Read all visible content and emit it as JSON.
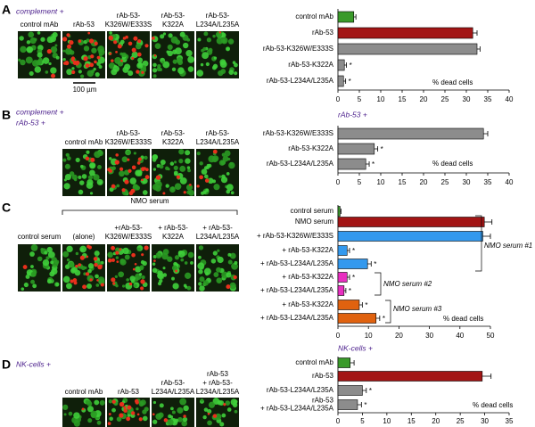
{
  "panels": [
    {
      "letter": "A",
      "heading": [
        "complement +"
      ],
      "images": [
        [
          "control mAb"
        ],
        [
          "rAb-53"
        ],
        [
          "rAb-53-",
          "K326W/E333S"
        ],
        [
          "rAb-53-",
          "K322A"
        ],
        [
          "rAb-53-",
          "L234A/L235A"
        ]
      ],
      "scale_bar": "100 µm"
    },
    {
      "letter": "B",
      "heading": [
        "complement +",
        "rAb-53 +"
      ],
      "images": [
        [
          "control mAb"
        ],
        [
          "rAb-53-",
          "K326W/E333S"
        ],
        [
          "rAb-53-",
          "K322A"
        ],
        [
          "rAb-53-",
          "L234A/L235A"
        ]
      ]
    },
    {
      "letter": "C",
      "group_label": "NMO serum",
      "images": [
        [
          "control serum"
        ],
        [
          "(alone)"
        ],
        [
          "+rAb-53-",
          "K326W/E333S"
        ],
        [
          "+ rAb-53-",
          "K322A"
        ],
        [
          "+ rAb-53-",
          "L234A/L235A"
        ]
      ]
    },
    {
      "letter": "D",
      "heading": [
        "NK-cells +"
      ],
      "images": [
        [
          "control mAb"
        ],
        [
          "rAb-53"
        ],
        [
          "rAb-53-",
          "L234A/L235A"
        ],
        [
          "rAb-53",
          "+ rAb-53-",
          "L234A/L235A"
        ]
      ]
    }
  ],
  "chart_data": [
    {
      "type": "bar",
      "orientation": "horizontal",
      "xlabel": "% dead cells",
      "categories": [
        "control mAb",
        "rAb-53",
        "rAb-53-K326W/E333S",
        "rAb-53-K322A",
        "rAb-53-L234A/L235A"
      ],
      "values": [
        3.7,
        31.5,
        32.5,
        1.5,
        1.3
      ],
      "errors": [
        0.5,
        1.0,
        0.7,
        0.5,
        0.5
      ],
      "colors": [
        "#3a9a2a",
        "#a31515",
        "#8c8c8c",
        "#8c8c8c",
        "#8c8c8c"
      ],
      "significance": [
        null,
        null,
        null,
        "*",
        "*"
      ],
      "xlim": [
        0,
        40
      ],
      "xticks": [
        0,
        5,
        10,
        15,
        20,
        25,
        30,
        35,
        40
      ]
    },
    {
      "type": "bar",
      "orientation": "horizontal",
      "title": "rAb-53 +",
      "xlabel": "% dead cells",
      "categories": [
        "rAb-53-K326W/E333S",
        "rAb-53-K322A",
        "rAb-53-L234A/L235A"
      ],
      "values": [
        34,
        8.5,
        6.5
      ],
      "errors": [
        1.0,
        0.8,
        0.8
      ],
      "colors": [
        "#8c8c8c",
        "#8c8c8c",
        "#8c8c8c"
      ],
      "significance": [
        null,
        "*",
        "*"
      ],
      "xlim": [
        0,
        40
      ],
      "xticks": [
        0,
        5,
        10,
        15,
        20,
        25,
        30,
        35,
        40
      ]
    },
    {
      "type": "bar",
      "orientation": "horizontal",
      "xlabel": "% dead cells",
      "categories": [
        "control serum",
        "NMO serum",
        "+ rAb-53-K326W/E333S",
        "+ rAb-53-K322A",
        "+ rAb-53-L234A/L235A",
        "+ rAb-53-K322A",
        "+ rAb-53-L234A/L235A",
        "+ rAb-53-K322A",
        "+ rAb-53-L234A/L235A"
      ],
      "values": [
        0.7,
        48,
        47.5,
        3,
        9.7,
        3,
        2,
        7,
        12.5
      ],
      "errors": [
        0.3,
        2.5,
        2.5,
        0.8,
        1.2,
        0.8,
        0.6,
        1.0,
        1.2
      ],
      "colors": [
        "#3a9a2a",
        "#a31515",
        "#3399ee",
        "#3399ee",
        "#3399ee",
        "#e82fc0",
        "#e82fc0",
        "#e0620f",
        "#e0620f"
      ],
      "significance": [
        null,
        null,
        null,
        "*",
        "*",
        "*",
        "*",
        "*",
        "*"
      ],
      "annotations": [
        "NMO serum #1",
        "NMO serum #2",
        "NMO serum #3"
      ],
      "xlim": [
        0,
        50
      ],
      "xticks": [
        0,
        10,
        20,
        30,
        40,
        50
      ]
    },
    {
      "type": "bar",
      "orientation": "horizontal",
      "title": "NK-cells +",
      "xlabel": "% dead cells",
      "categories": [
        "control mAb",
        "rAb-53",
        "rAb-53-L234A/L235A",
        [
          "rAb-53",
          "+ rAb-53-L234A/L235A"
        ]
      ],
      "values": [
        2.5,
        29.5,
        5,
        4
      ],
      "errors": [
        0.8,
        1.8,
        0.8,
        0.8
      ],
      "colors": [
        "#3a9a2a",
        "#a31515",
        "#8c8c8c",
        "#8c8c8c"
      ],
      "significance": [
        null,
        null,
        "*",
        "*"
      ],
      "xlim": [
        0,
        35
      ],
      "xticks": [
        0,
        5,
        10,
        15,
        20,
        25,
        30,
        35
      ]
    }
  ]
}
